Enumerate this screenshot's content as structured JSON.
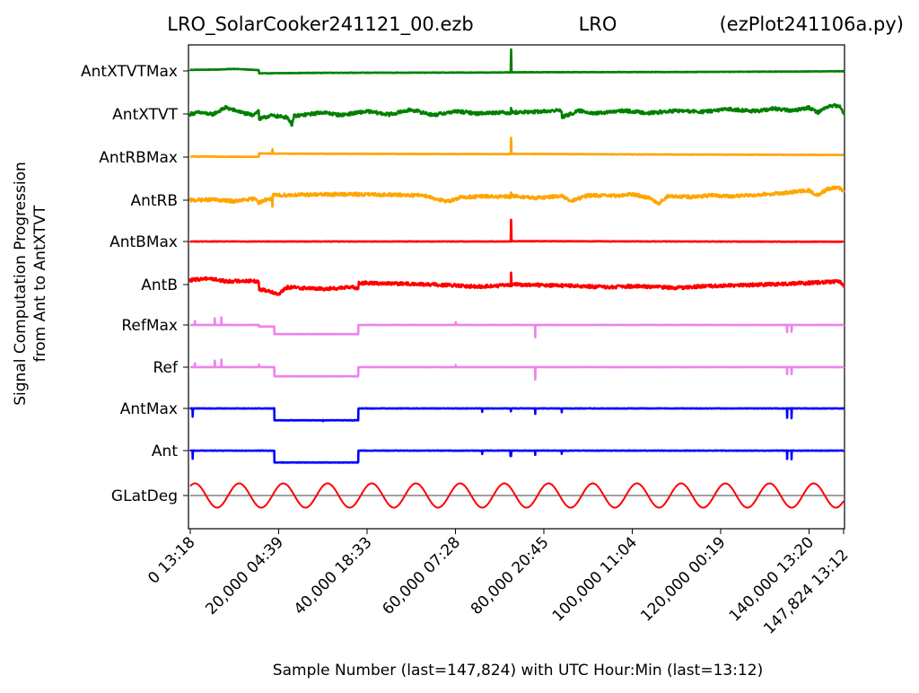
{
  "chart_data": {
    "type": "line",
    "title_left": "LRO_SolarCooker241121_00.ezb",
    "title_center": "LRO",
    "title_right": "(ezPlot241106a.py)",
    "xlabel": "Sample Number (last=147,824) with UTC Hour:Min (last=13:12)",
    "ylabel_line1": "Signal Computation Progression",
    "ylabel_line2": "from Ant to AntXTVT",
    "xlim": [
      0,
      147824
    ],
    "x_ticks": [
      {
        "value": 0,
        "label": "0  13:18"
      },
      {
        "value": 20000,
        "label": "20,000  04:39"
      },
      {
        "value": 40000,
        "label": "40,000  18:33"
      },
      {
        "value": 60000,
        "label": "60,000  07:28"
      },
      {
        "value": 80000,
        "label": "80,000  20:45"
      },
      {
        "value": 100000,
        "label": "100,000  11:04"
      },
      {
        "value": 120000,
        "label": "120,000  00:19"
      },
      {
        "value": 140000,
        "label": "140,000  13:20"
      },
      {
        "value": 147824,
        "label": "147,824  13:12"
      }
    ],
    "grid": false,
    "legend": "none",
    "series": [
      {
        "name": "AntXTVTMax",
        "color": "#008000",
        "noise": 0.02,
        "points": [
          [
            0,
            0.2
          ],
          [
            6000,
            0.25
          ],
          [
            10000,
            0.38
          ],
          [
            13000,
            0.25
          ],
          [
            15500,
            0.15
          ],
          [
            15600,
            -0.45
          ],
          [
            30000,
            -0.35
          ],
          [
            70000,
            -0.3
          ],
          [
            72500,
            -0.25
          ],
          [
            72600,
            4.0
          ],
          [
            72700,
            -0.2
          ],
          [
            73000,
            -0.25
          ],
          [
            110000,
            -0.2
          ],
          [
            140000,
            -0.1
          ],
          [
            147824,
            -0.05
          ]
        ]
      },
      {
        "name": "AntXTVT",
        "color": "#008000",
        "noise": 0.15,
        "points": [
          [
            0,
            0
          ],
          [
            2000,
            0.3
          ],
          [
            5000,
            -0.1
          ],
          [
            8000,
            1.2
          ],
          [
            12000,
            0.2
          ],
          [
            14000,
            -0.2
          ],
          [
            15500,
            0.6
          ],
          [
            15600,
            -1.0
          ],
          [
            18000,
            -0.3
          ],
          [
            22000,
            -0.6
          ],
          [
            23000,
            -2.0
          ],
          [
            23500,
            -0.4
          ],
          [
            30000,
            0.3
          ],
          [
            34000,
            -0.2
          ],
          [
            40000,
            0.5
          ],
          [
            45000,
            -0.1
          ],
          [
            50000,
            0.8
          ],
          [
            55000,
            -0.2
          ],
          [
            60000,
            0.5
          ],
          [
            65000,
            0.1
          ],
          [
            70000,
            0.3
          ],
          [
            72500,
            0.2
          ],
          [
            72600,
            1.3
          ],
          [
            72700,
            0.3
          ],
          [
            78000,
            0.4
          ],
          [
            84000,
            0.7
          ],
          [
            84100,
            -0.6
          ],
          [
            88000,
            0.6
          ],
          [
            92000,
            0.1
          ],
          [
            98000,
            0.6
          ],
          [
            104000,
            0.2
          ],
          [
            110000,
            0.6
          ],
          [
            116000,
            0.4
          ],
          [
            122000,
            0.9
          ],
          [
            128000,
            0.5
          ],
          [
            132000,
            1.0
          ],
          [
            136000,
            0.6
          ],
          [
            140000,
            1.2
          ],
          [
            142000,
            0.3
          ],
          [
            144000,
            1.3
          ],
          [
            146000,
            1.6
          ],
          [
            147000,
            1.3
          ],
          [
            147824,
            0.2
          ]
        ]
      },
      {
        "name": "AntRBMax",
        "color": "#ffa500",
        "noise": 0.02,
        "points": [
          [
            0,
            0.1
          ],
          [
            15500,
            0.05
          ],
          [
            15600,
            0.7
          ],
          [
            18500,
            0.65
          ],
          [
            18600,
            1.5
          ],
          [
            18700,
            0.65
          ],
          [
            40000,
            0.6
          ],
          [
            72500,
            0.55
          ],
          [
            72600,
            3.6
          ],
          [
            72700,
            0.6
          ],
          [
            100000,
            0.5
          ],
          [
            147824,
            0.4
          ]
        ]
      },
      {
        "name": "AntRB",
        "color": "#ffa500",
        "noise": 0.15,
        "points": [
          [
            0,
            0
          ],
          [
            5000,
            0.1
          ],
          [
            10000,
            -0.2
          ],
          [
            15000,
            0.3
          ],
          [
            15500,
            -0.5
          ],
          [
            17000,
            0.1
          ],
          [
            18500,
            0.2
          ],
          [
            18600,
            -1.3
          ],
          [
            18700,
            0.9
          ],
          [
            25000,
            1.0
          ],
          [
            35000,
            1.1
          ],
          [
            45000,
            1.0
          ],
          [
            53000,
            0.9
          ],
          [
            55000,
            0.4
          ],
          [
            58000,
            -0.3
          ],
          [
            61000,
            0.5
          ],
          [
            66000,
            0.7
          ],
          [
            72500,
            0.6
          ],
          [
            72600,
            1.6
          ],
          [
            72700,
            0.8
          ],
          [
            78000,
            0.4
          ],
          [
            84000,
            0.8
          ],
          [
            86000,
            -0.2
          ],
          [
            90000,
            0.9
          ],
          [
            96000,
            0.8
          ],
          [
            100000,
            1.1
          ],
          [
            104000,
            0.4
          ],
          [
            106000,
            -0.6
          ],
          [
            108000,
            0.7
          ],
          [
            114000,
            0.6
          ],
          [
            118000,
            0.9
          ],
          [
            122000,
            0.7
          ],
          [
            128000,
            1.0
          ],
          [
            134000,
            1.3
          ],
          [
            140000,
            1.8
          ],
          [
            142000,
            0.9
          ],
          [
            144000,
            2.0
          ],
          [
            146000,
            2.3
          ],
          [
            147000,
            2.2
          ],
          [
            147824,
            1.6
          ]
        ]
      },
      {
        "name": "AntBMax",
        "color": "#ff0000",
        "noise": 0.02,
        "points": [
          [
            0,
            0
          ],
          [
            72500,
            0.0
          ],
          [
            72600,
            4.0
          ],
          [
            72700,
            0.05
          ],
          [
            147824,
            -0.05
          ]
        ]
      },
      {
        "name": "AntB",
        "color": "#ff0000",
        "noise": 0.15,
        "points": [
          [
            0,
            0.8
          ],
          [
            4000,
            1.2
          ],
          [
            8000,
            0.6
          ],
          [
            12000,
            0.7
          ],
          [
            15500,
            0.6
          ],
          [
            15600,
            -0.9
          ],
          [
            18000,
            -1.2
          ],
          [
            20000,
            -1.8
          ],
          [
            22000,
            -0.5
          ],
          [
            30000,
            -0.8
          ],
          [
            37000,
            -0.5
          ],
          [
            38000,
            -0.7
          ],
          [
            38100,
            0.3
          ],
          [
            45000,
            0.2
          ],
          [
            55000,
            0.0
          ],
          [
            65000,
            -0.4
          ],
          [
            72500,
            -0.1
          ],
          [
            72600,
            2.5
          ],
          [
            72700,
            0.0
          ],
          [
            85000,
            -0.2
          ],
          [
            95000,
            -0.5
          ],
          [
            100000,
            -0.3
          ],
          [
            110000,
            -0.6
          ],
          [
            120000,
            -0.2
          ],
          [
            130000,
            0.0
          ],
          [
            140000,
            0.3
          ],
          [
            147000,
            0.6
          ],
          [
            147824,
            -0.3
          ]
        ]
      },
      {
        "name": "RefMax",
        "color": "#ee82ee",
        "noise": 0.01,
        "points": [
          [
            0,
            0
          ],
          [
            1000,
            0
          ],
          [
            1050,
            0.7
          ],
          [
            1100,
            0
          ],
          [
            5500,
            0
          ],
          [
            5550,
            1.2
          ],
          [
            5600,
            0
          ],
          [
            7000,
            0
          ],
          [
            7050,
            1.4
          ],
          [
            7100,
            0
          ],
          [
            15500,
            0
          ],
          [
            15550,
            -0.3
          ],
          [
            18500,
            -0.3
          ],
          [
            19000,
            -0.3
          ],
          [
            19050,
            -1.7
          ],
          [
            38000,
            -1.7
          ],
          [
            38050,
            0
          ],
          [
            60000,
            0
          ],
          [
            60050,
            0.5
          ],
          [
            60100,
            0
          ],
          [
            78000,
            0
          ],
          [
            78050,
            -2.3
          ],
          [
            78100,
            0
          ],
          [
            135000,
            0
          ],
          [
            135050,
            -1.3
          ],
          [
            135100,
            0
          ],
          [
            136000,
            0
          ],
          [
            136050,
            -1.3
          ],
          [
            136100,
            0
          ],
          [
            147824,
            0
          ]
        ]
      },
      {
        "name": "Ref",
        "color": "#ee82ee",
        "noise": 0.01,
        "points": [
          [
            0,
            0
          ],
          [
            1000,
            0
          ],
          [
            1050,
            0.7
          ],
          [
            1100,
            0
          ],
          [
            5500,
            0
          ],
          [
            5550,
            1.2
          ],
          [
            5600,
            0
          ],
          [
            7000,
            0
          ],
          [
            7050,
            1.4
          ],
          [
            7100,
            0
          ],
          [
            15500,
            0
          ],
          [
            15550,
            0.5
          ],
          [
            15600,
            0
          ],
          [
            19000,
            0
          ],
          [
            19050,
            -1.7
          ],
          [
            38000,
            -1.7
          ],
          [
            38050,
            0
          ],
          [
            60000,
            0
          ],
          [
            60050,
            0.4
          ],
          [
            60100,
            0
          ],
          [
            78000,
            0
          ],
          [
            78050,
            -2.3
          ],
          [
            78100,
            0
          ],
          [
            135000,
            0
          ],
          [
            135050,
            -1.3
          ],
          [
            135100,
            0
          ],
          [
            136000,
            0
          ],
          [
            136050,
            -1.3
          ],
          [
            136100,
            0
          ],
          [
            147824,
            0
          ]
        ]
      },
      {
        "name": "AntMax",
        "color": "#0000ff",
        "noise": 0.02,
        "points": [
          [
            0,
            0
          ],
          [
            500,
            0
          ],
          [
            550,
            -1.5
          ],
          [
            600,
            0
          ],
          [
            15500,
            0
          ],
          [
            18500,
            0
          ],
          [
            19000,
            0
          ],
          [
            19050,
            -2.2
          ],
          [
            30000,
            -2.2
          ],
          [
            30050,
            -2.4
          ],
          [
            30100,
            -2.2
          ],
          [
            38000,
            -2.2
          ],
          [
            38050,
            0
          ],
          [
            66000,
            0
          ],
          [
            66050,
            -0.6
          ],
          [
            66100,
            0
          ],
          [
            72500,
            0
          ],
          [
            72550,
            -0.5
          ],
          [
            72600,
            0
          ],
          [
            78000,
            0
          ],
          [
            78050,
            -1.0
          ],
          [
            78100,
            0
          ],
          [
            84000,
            0
          ],
          [
            84050,
            -0.7
          ],
          [
            84100,
            0
          ],
          [
            135000,
            0
          ],
          [
            135050,
            -1.7
          ],
          [
            135100,
            0
          ],
          [
            136000,
            0
          ],
          [
            136050,
            -1.8
          ],
          [
            136100,
            0
          ],
          [
            147824,
            0
          ]
        ]
      },
      {
        "name": "Ant",
        "color": "#0000ff",
        "noise": 0.02,
        "points": [
          [
            0,
            0
          ],
          [
            500,
            0
          ],
          [
            550,
            -1.5
          ],
          [
            600,
            0
          ],
          [
            19000,
            0
          ],
          [
            19050,
            -2.2
          ],
          [
            38000,
            -2.2
          ],
          [
            38050,
            0
          ],
          [
            66000,
            0
          ],
          [
            66050,
            -0.6
          ],
          [
            66100,
            0
          ],
          [
            72400,
            0
          ],
          [
            72450,
            -1.0
          ],
          [
            72500,
            -0.6
          ],
          [
            72600,
            -1.0
          ],
          [
            72650,
            0
          ],
          [
            78000,
            0
          ],
          [
            78050,
            -0.8
          ],
          [
            78100,
            0
          ],
          [
            84000,
            0
          ],
          [
            84050,
            -0.6
          ],
          [
            84100,
            0
          ],
          [
            135000,
            0
          ],
          [
            135050,
            -1.5
          ],
          [
            135100,
            0
          ],
          [
            136000,
            0
          ],
          [
            136050,
            -1.6
          ],
          [
            136100,
            0
          ],
          [
            147824,
            0
          ]
        ]
      },
      {
        "name": "GLatDeg",
        "color": "#ff0000",
        "noise": 0.0,
        "wave": {
          "period_samples": 10000,
          "amplitude": 1.5,
          "offset": 0.0
        },
        "baseline": 0
      }
    ]
  }
}
